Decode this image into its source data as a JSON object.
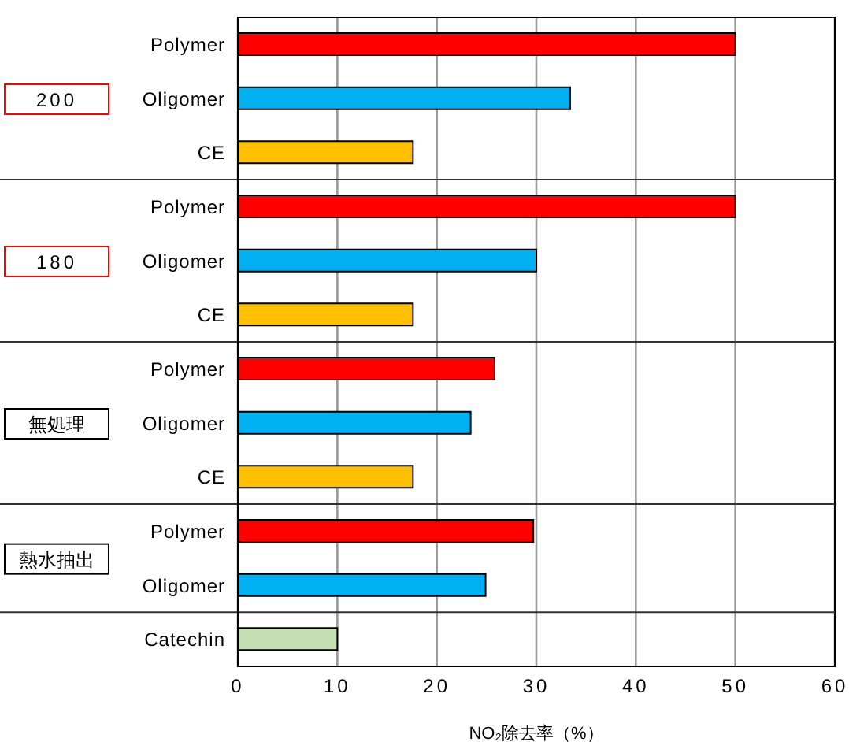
{
  "chart_data": {
    "type": "bar",
    "orientation": "horizontal",
    "xlabel": "NO₂除去率（%）",
    "categories": [
      "Polymer",
      "Oligomer",
      "CE",
      "Polymer",
      "Oligomer",
      "CE",
      "Polymer",
      "Oligomer",
      "CE",
      "Polymer",
      "Oligomer",
      "Catechin"
    ],
    "values": [
      50,
      33.4,
      17.6,
      50,
      30,
      17.6,
      25.8,
      23.4,
      17.6,
      29.7,
      24.9,
      10
    ],
    "colors": [
      "#ff0000",
      "#00b0f0",
      "#ffc000",
      "#ff0000",
      "#00b0f0",
      "#ffc000",
      "#ff0000",
      "#00b0f0",
      "#ffc000",
      "#ff0000",
      "#00b0f0",
      "#c6e0b4"
    ],
    "xlim": [
      0,
      60
    ],
    "xticks": [
      0,
      10,
      20,
      30,
      40,
      50,
      60
    ],
    "grid": "x",
    "annotations": [
      "200",
      "180",
      "無処理",
      "熱水抽出"
    ]
  }
}
